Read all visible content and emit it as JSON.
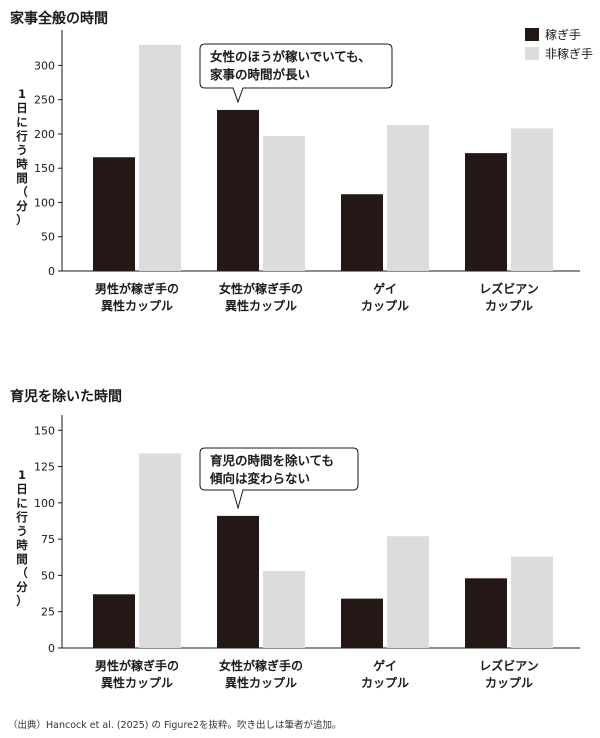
{
  "legend": [
    {
      "label": "稼ぎ手",
      "color": "#231815"
    },
    {
      "label": "非稼ぎ手",
      "color": "#dcdcdc"
    }
  ],
  "categories": [
    [
      "男性が稼ぎ手の",
      "異性カップル"
    ],
    [
      "女性が稼ぎ手の",
      "異性カップル"
    ],
    [
      "ゲイ",
      "カップル"
    ],
    [
      "レズビアン",
      "カップル"
    ]
  ],
  "ylabel_chars": [
    "1",
    "日",
    "に",
    "行",
    "う",
    "時",
    "間",
    "（",
    "分",
    "）"
  ],
  "source": "（出典）Hancock et al. (2025) の Figure2を抜粋。吹き出しは筆者が追加。",
  "chart_data": [
    {
      "type": "bar",
      "title": "家事全般の時間",
      "ylabel": "1日に行う時間（分）",
      "ylim": [
        0,
        340
      ],
      "yticks": [
        0,
        50,
        100,
        150,
        200,
        250,
        300
      ],
      "categories": [
        "男性が稼ぎ手の異性カップル",
        "女性が稼ぎ手の異性カップル",
        "ゲイカップル",
        "レズビアンカップル"
      ],
      "series": [
        {
          "name": "稼ぎ手",
          "values": [
            166,
            235,
            112,
            172
          ]
        },
        {
          "name": "非稼ぎ手",
          "values": [
            330,
            197,
            213,
            208
          ]
        }
      ],
      "callout": [
        "女性のほうが稼いでいても、",
        "家事の時間が長い"
      ],
      "callout_target": {
        "category": 1,
        "series": 0
      }
    },
    {
      "type": "bar",
      "title": "育児を除いた時間",
      "ylabel": "1日に行う時間（分）",
      "ylim": [
        0,
        155
      ],
      "yticks": [
        0,
        25,
        50,
        75,
        100,
        125,
        150
      ],
      "categories": [
        "男性が稼ぎ手の異性カップル",
        "女性が稼ぎ手の異性カップル",
        "ゲイカップル",
        "レズビアンカップル"
      ],
      "series": [
        {
          "name": "稼ぎ手",
          "values": [
            37,
            91,
            34,
            48
          ]
        },
        {
          "name": "非稼ぎ手",
          "values": [
            134,
            53,
            77,
            63
          ]
        }
      ],
      "callout": [
        "育児の時間を除いても",
        "傾向は変わらない"
      ],
      "callout_target": {
        "category": 1,
        "series": 0
      }
    }
  ]
}
